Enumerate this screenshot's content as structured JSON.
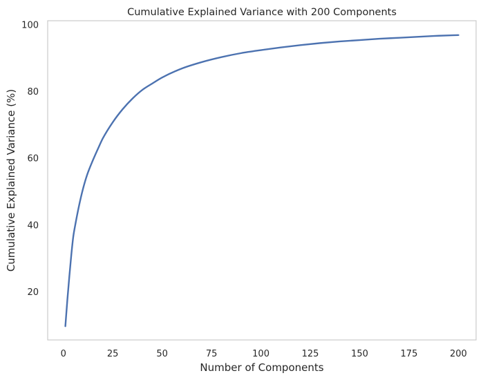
{
  "chart_data": {
    "type": "line",
    "title": "Cumulative Explained Variance with 200 Components",
    "xlabel": "Number of Components",
    "ylabel": "Cumulative Explained Variance (%)",
    "xlim": [
      -7.95,
      208.95
    ],
    "ylim": [
      5.6,
      101.2
    ],
    "xticks": [
      0,
      25,
      50,
      75,
      100,
      125,
      150,
      175,
      200
    ],
    "yticks": [
      20,
      40,
      60,
      80,
      100
    ],
    "grid": false,
    "legend": "none",
    "series": [
      {
        "color": "#4c72b0",
        "x": [
          1,
          2,
          3,
          4,
          5,
          6,
          8,
          10,
          12,
          15,
          18,
          20,
          25,
          30,
          35,
          40,
          45,
          50,
          60,
          70,
          80,
          90,
          100,
          110,
          120,
          130,
          140,
          150,
          160,
          170,
          180,
          190,
          200
        ],
        "y": [
          9.7,
          17.5,
          24.5,
          31.0,
          36.5,
          40.0,
          46.0,
          51.0,
          55.0,
          59.5,
          63.5,
          66.0,
          70.8,
          74.7,
          77.9,
          80.5,
          82.4,
          84.2,
          86.9,
          88.8,
          90.3,
          91.5,
          92.4,
          93.2,
          93.9,
          94.5,
          95.0,
          95.4,
          95.8,
          96.1,
          96.4,
          96.7,
          96.9
        ]
      }
    ]
  }
}
